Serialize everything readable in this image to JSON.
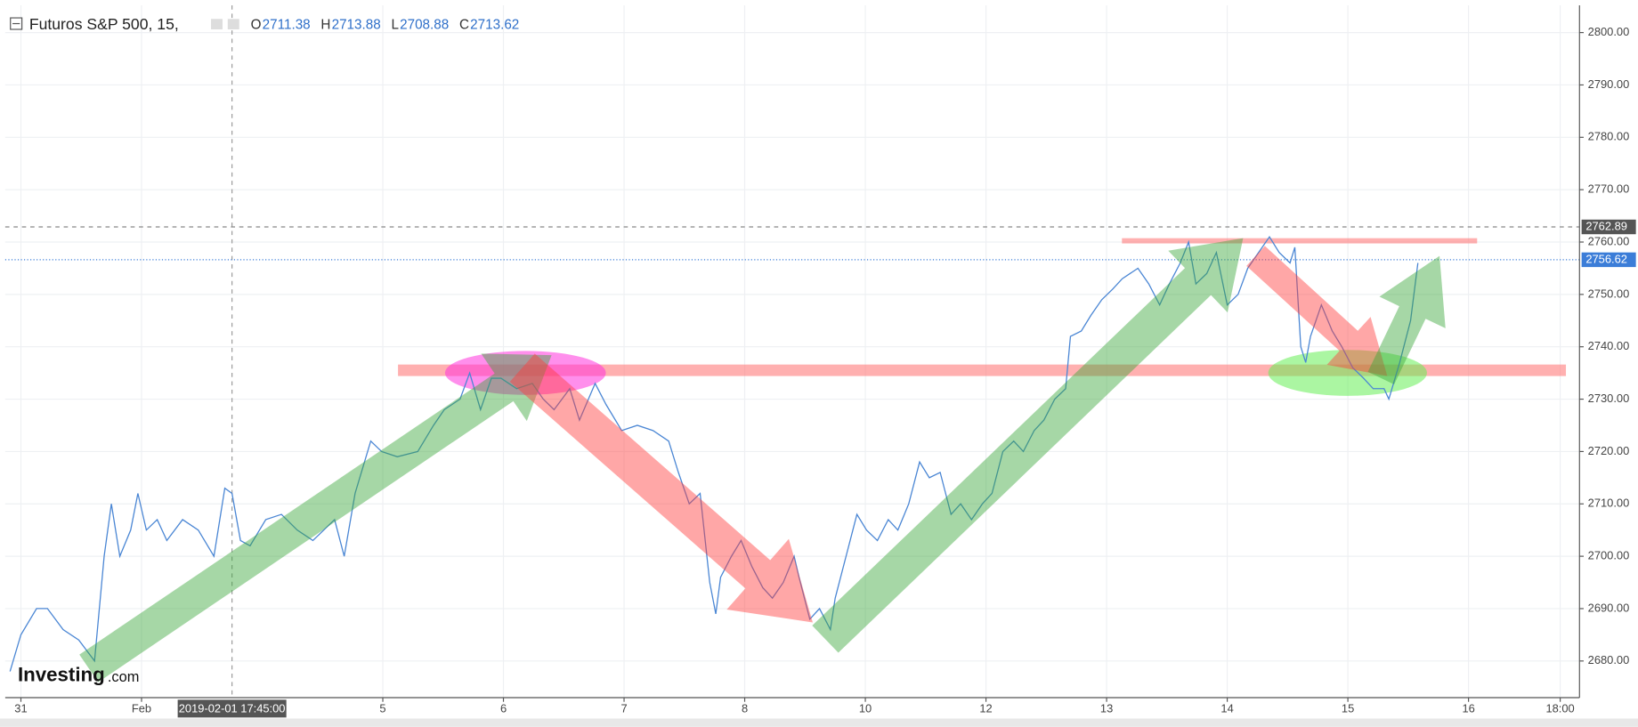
{
  "chart_data": {
    "type": "line",
    "title": "Futuros S&P 500, 15,",
    "ohlc": [
      {
        "label": "O",
        "value": 2711.38
      },
      {
        "label": "H",
        "value": 2713.88
      },
      {
        "label": "L",
        "value": 2708.88
      },
      {
        "label": "C",
        "value": 2713.62
      }
    ],
    "logo": "Investing",
    "logo_suffix": ".com",
    "x": [
      -0.09,
      0,
      0.13,
      0.22,
      0.35,
      0.48,
      0.61,
      0.69,
      0.75,
      0.82,
      0.91,
      0.97,
      1.04,
      1.13,
      1.21,
      1.34,
      1.47,
      1.6,
      1.69,
      1.75,
      1.82,
      1.9,
      2.03,
      2.16,
      2.29,
      2.42,
      2.6,
      2.68,
      2.77,
      2.9,
      2.99,
      3.12,
      3.29,
      3.42,
      3.51,
      3.64,
      3.72,
      3.81,
      3.9,
      3.98,
      4.11,
      4.24,
      4.33,
      4.42,
      4.55,
      4.63,
      4.76,
      4.85,
      4.98,
      5.11,
      5.24,
      5.37,
      5.45,
      5.54,
      5.63,
      5.71,
      5.76,
      5.8,
      5.89,
      5.97,
      6.06,
      6.15,
      6.23,
      6.32,
      6.41,
      6.45,
      6.54,
      6.62,
      6.71,
      6.75,
      6.84,
      6.93,
      7.01,
      7.1,
      7.19,
      7.27,
      7.36,
      7.45,
      7.53,
      7.62,
      7.71,
      7.79,
      7.88,
      7.97,
      8.05,
      8.14,
      8.23,
      8.31,
      8.4,
      8.48,
      8.57,
      8.66,
      8.7,
      8.79,
      8.87,
      8.96,
      9.05,
      9.13,
      9.26,
      9.35,
      9.44,
      9.52,
      9.61,
      9.68,
      9.74,
      9.83,
      9.91,
      10,
      10.09,
      10.17,
      10.26,
      10.35,
      10.43,
      10.52,
      10.56,
      10.61,
      10.65,
      10.69,
      10.78,
      10.87,
      10.95,
      11.04,
      11.13,
      11.21,
      11.3,
      11.34,
      11.43,
      11.52,
      11.58
    ],
    "series": [
      {
        "color": "#4a86d4",
        "values": [
          2678,
          2685,
          2690,
          2690,
          2686,
          2684,
          2680,
          2700,
          2710,
          2700,
          2705,
          2712,
          2705,
          2707,
          2703,
          2707,
          2705,
          2700,
          2713,
          2712,
          2703,
          2702,
          2707,
          2708,
          2705,
          2703,
          2707,
          2700,
          2712,
          2722,
          2720,
          2719,
          2720,
          2725,
          2728,
          2730,
          2735,
          2728,
          2734,
          2734,
          2732,
          2733,
          2730,
          2728,
          2732,
          2726,
          2733,
          2729,
          2724,
          2725,
          2724,
          2722,
          2716,
          2710,
          2712,
          2695,
          2689,
          2696,
          2700,
          2703,
          2698,
          2694,
          2692,
          2695,
          2700,
          2696,
          2688,
          2690,
          2686,
          2692,
          2700,
          2708,
          2705,
          2703,
          2707,
          2705,
          2710,
          2718,
          2715,
          2716,
          2708,
          2710,
          2707,
          2710,
          2712,
          2720,
          2722,
          2720,
          2724,
          2726,
          2730,
          2732,
          2742,
          2743,
          2746,
          2749,
          2751,
          2753,
          2755,
          2752,
          2748,
          2752,
          2756,
          2760,
          2752,
          2754,
          2758,
          2748,
          2750,
          2755,
          2758,
          2761,
          2758,
          2756,
          2759,
          2740,
          2737,
          2742,
          2748,
          2743,
          2740,
          2736,
          2734,
          2732,
          2732,
          2730,
          2737,
          2745,
          2756
        ]
      }
    ],
    "xlim": [
      -0.13,
      12.92
    ],
    "xticks": [
      {
        "value": 0,
        "label": "31"
      },
      {
        "value": 1,
        "label": "Feb"
      },
      {
        "value": 3,
        "label": "5"
      },
      {
        "value": 4,
        "label": "6"
      },
      {
        "value": 5,
        "label": "7"
      },
      {
        "value": 6,
        "label": "8"
      },
      {
        "value": 7,
        "label": "10"
      },
      {
        "value": 8,
        "label": "12"
      },
      {
        "value": 9,
        "label": "13"
      },
      {
        "value": 10,
        "label": "14"
      },
      {
        "value": 11,
        "label": "15"
      },
      {
        "value": 12,
        "label": "16"
      },
      {
        "value": 12.76,
        "label": "18:00"
      }
    ],
    "ylim": [
      2673,
      2805.2
    ],
    "yticks": [
      {
        "value": 2680,
        "label": "2680.00"
      },
      {
        "value": 2690,
        "label": "2690.00"
      },
      {
        "value": 2700,
        "label": "2700.00"
      },
      {
        "value": 2710,
        "label": "2710.00"
      },
      {
        "value": 2720,
        "label": "2720.00"
      },
      {
        "value": 2730,
        "label": "2730.00"
      },
      {
        "value": 2740,
        "label": "2740.00"
      },
      {
        "value": 2750,
        "label": "2750.00"
      },
      {
        "value": 2760,
        "label": "2760.00"
      },
      {
        "value": 2770,
        "label": "2770.00"
      },
      {
        "value": 2780,
        "label": "2780.00"
      },
      {
        "value": 2790,
        "label": "2790.00"
      },
      {
        "value": 2800,
        "label": "2800.00"
      }
    ],
    "grid": true,
    "crosshair_x": {
      "value": 1.75,
      "label": "2019-02-01 17:45:00"
    },
    "crosshair_price": 2762.89,
    "last_price": 2756.62,
    "last_price_color": "#3b7dd8"
  }
}
